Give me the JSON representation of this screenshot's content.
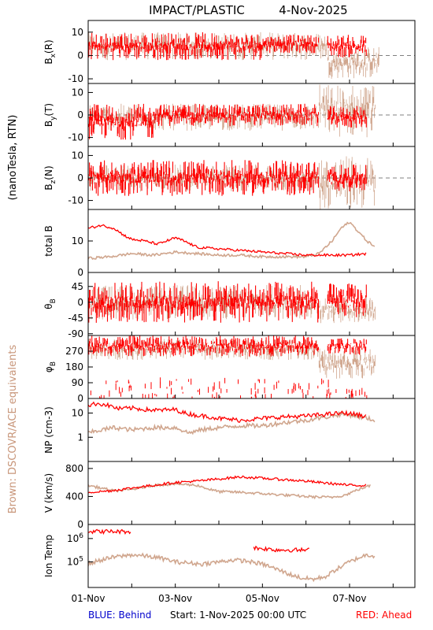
{
  "title": "IMPACT/PLASTIC",
  "date": "4-Nov-2025",
  "units_label": "(nanoTesla, RTN)",
  "brown_note": "Brown: DSCOVR/ACE equivalents",
  "footer": {
    "blue": "BLUE: Behind",
    "start": "Start:   1-Nov-2025 00:00 UTC",
    "red": "RED: Ahead"
  },
  "colors": {
    "ahead": "#ff0000",
    "ace": "#c8967a",
    "behind": "#0000cc",
    "dash": "#808080"
  },
  "chart_data": {
    "type": "scatter",
    "x_axis": {
      "ticks": [
        "01-Nov",
        "03-Nov",
        "05-Nov",
        "07-Nov"
      ],
      "range_days": [
        0,
        7.5
      ]
    },
    "panels": [
      {
        "id": "bx",
        "label": "Bx(R)",
        "ylim": [
          -12,
          15
        ],
        "ticks": [
          "10",
          "0",
          "-10"
        ],
        "tick_values": [
          10,
          0,
          -10
        ],
        "zero_dash": true,
        "series": [
          {
            "name": "Ahead",
            "color": "red",
            "segments": [
              {
                "x0": 0,
                "x1": 4.0,
                "y": 4,
                "amp": 6
              },
              {
                "x0": 4.0,
                "x1": 5.3,
                "y": 5,
                "amp": 4
              },
              {
                "x0": 5.5,
                "x1": 6.4,
                "y": 4,
                "amp": 5
              }
            ]
          },
          {
            "name": "ACE",
            "color": "brown",
            "segments": [
              {
                "x0": 0,
                "x1": 5.5,
                "y": 4,
                "amp": 6
              },
              {
                "x0": 5.5,
                "x1": 6.7,
                "y": -3,
                "amp": 7
              }
            ]
          }
        ]
      },
      {
        "id": "by",
        "label": "By(T)",
        "ylim": [
          -14,
          14
        ],
        "ticks": [
          "10",
          "0",
          "-10"
        ],
        "tick_values": [
          10,
          0,
          -10
        ],
        "zero_dash": true,
        "series": [
          {
            "name": "Ahead",
            "color": "red",
            "segments": [
              {
                "x0": 0,
                "x1": 1.5,
                "y": -3,
                "amp": 8
              },
              {
                "x0": 1.5,
                "x1": 5.3,
                "y": 0,
                "amp": 5
              },
              {
                "x0": 5.5,
                "x1": 6.4,
                "y": -1,
                "amp": 5
              }
            ]
          },
          {
            "name": "ACE",
            "color": "brown",
            "segments": [
              {
                "x0": 0,
                "x1": 5.3,
                "y": -1,
                "amp": 6
              },
              {
                "x0": 5.3,
                "x1": 6.6,
                "y": 2,
                "amp": 12
              }
            ]
          }
        ]
      },
      {
        "id": "bz",
        "label": "Bz(N)",
        "ylim": [
          -14,
          14
        ],
        "ticks": [
          "10",
          "0",
          "-10"
        ],
        "tick_values": [
          10,
          0,
          -10
        ],
        "zero_dash": true,
        "series": [
          {
            "name": "Ahead",
            "color": "red",
            "segments": [
              {
                "x0": 0,
                "x1": 5.3,
                "y": 0,
                "amp": 8
              },
              {
                "x0": 5.5,
                "x1": 6.4,
                "y": 0,
                "amp": 6
              }
            ]
          },
          {
            "name": "ACE",
            "color": "brown",
            "segments": [
              {
                "x0": 0,
                "x1": 5.3,
                "y": 0,
                "amp": 6
              },
              {
                "x0": 5.3,
                "x1": 6.6,
                "y": -2,
                "amp": 12
              }
            ]
          }
        ]
      },
      {
        "id": "bt",
        "label": "total B",
        "ylim": [
          0,
          20
        ],
        "ticks": [
          "10",
          "0"
        ],
        "tick_values": [
          10,
          0
        ],
        "zero_dash": false,
        "series": [
          {
            "name": "Ahead",
            "color": "red",
            "line": [
              [
                0,
                14
              ],
              [
                0.3,
                15
              ],
              [
                0.6,
                14
              ],
              [
                0.8,
                12
              ],
              [
                1.0,
                10.5
              ],
              [
                1.3,
                10
              ],
              [
                1.6,
                9
              ],
              [
                2.0,
                11
              ],
              [
                2.2,
                10
              ],
              [
                2.5,
                8
              ],
              [
                3.0,
                7.5
              ],
              [
                3.5,
                7
              ],
              [
                4.0,
                6.5
              ],
              [
                4.5,
                6
              ],
              [
                5.0,
                5.5
              ],
              [
                5.3,
                5.5
              ],
              [
                5.5,
                5.5
              ],
              [
                6.0,
                5.5
              ],
              [
                6.4,
                6
              ]
            ]
          },
          {
            "name": "ACE",
            "color": "brown",
            "line": [
              [
                0,
                4.5
              ],
              [
                0.5,
                5
              ],
              [
                1.0,
                6
              ],
              [
                1.5,
                5.5
              ],
              [
                2.0,
                6.5
              ],
              [
                2.5,
                6
              ],
              [
                3.0,
                5.5
              ],
              [
                3.5,
                5.5
              ],
              [
                4.0,
                5
              ],
              [
                4.5,
                5
              ],
              [
                5.0,
                5
              ],
              [
                5.3,
                6
              ],
              [
                5.6,
                10
              ],
              [
                5.8,
                14
              ],
              [
                6.0,
                16
              ],
              [
                6.2,
                13
              ],
              [
                6.4,
                10
              ],
              [
                6.6,
                8
              ]
            ]
          }
        ]
      },
      {
        "id": "theta",
        "label": "θB",
        "ylim": [
          -95,
          85
        ],
        "ticks": [
          "45",
          "0",
          "-45",
          "-90"
        ],
        "tick_values": [
          45,
          0,
          -45,
          -90
        ],
        "zero_dash": false,
        "series": [
          {
            "name": "Ahead",
            "color": "red",
            "segments": [
              {
                "x0": 0,
                "x1": 5.3,
                "y": 0,
                "amp": 60
              },
              {
                "x0": 5.5,
                "x1": 6.4,
                "y": 5,
                "amp": 50
              }
            ]
          },
          {
            "name": "ACE",
            "color": "brown",
            "segments": [
              {
                "x0": 0,
                "x1": 5.3,
                "y": 0,
                "amp": 50
              },
              {
                "x0": 5.3,
                "x1": 6.6,
                "y": -20,
                "amp": 40
              }
            ]
          }
        ]
      },
      {
        "id": "phi",
        "label": "φB",
        "ylim": [
          0,
          360
        ],
        "ticks": [
          "270",
          "180",
          "90",
          "0"
        ],
        "tick_values": [
          270,
          180,
          90,
          0
        ],
        "zero_dash": false,
        "series": [
          {
            "name": "Ahead",
            "color": "red",
            "segments": [
              {
                "x0": 0,
                "x1": 5.3,
                "y": 300,
                "amp": 60
              },
              {
                "x0": 5.5,
                "x1": 6.4,
                "y": 300,
                "amp": 50
              }
            ],
            "scatter_low": true
          },
          {
            "name": "ACE",
            "color": "brown",
            "segments": [
              {
                "x0": 0,
                "x1": 5.3,
                "y": 280,
                "amp": 60
              },
              {
                "x0": 5.3,
                "x1": 6.6,
                "y": 200,
                "amp": 90
              }
            ]
          }
        ]
      },
      {
        "id": "np",
        "label": "NP (cm-3)",
        "log": true,
        "ylim": [
          0.1,
          40
        ],
        "ticks": [
          "10",
          "1"
        ],
        "tick_values": [
          10,
          1
        ],
        "zero_dash": false,
        "series": [
          {
            "name": "Ahead",
            "color": "red",
            "line": [
              [
                0,
                20
              ],
              [
                0.2,
                25
              ],
              [
                0.4,
                22
              ],
              [
                0.7,
                15
              ],
              [
                1.0,
                16
              ],
              [
                1.3,
                14
              ],
              [
                1.6,
                13
              ],
              [
                2.0,
                14
              ],
              [
                2.2,
                10
              ],
              [
                2.5,
                8
              ],
              [
                2.8,
                7
              ],
              [
                3.0,
                6
              ],
              [
                3.5,
                5
              ],
              [
                4.0,
                6
              ],
              [
                4.5,
                7
              ],
              [
                5.0,
                7.5
              ],
              [
                5.5,
                9
              ],
              [
                5.9,
                10
              ],
              [
                6.1,
                9
              ],
              [
                6.4,
                7
              ]
            ]
          },
          {
            "name": "ACE",
            "color": "brown",
            "line": [
              [
                0,
                1.5
              ],
              [
                0.3,
                2
              ],
              [
                0.6,
                2.5
              ],
              [
                1.0,
                2
              ],
              [
                1.5,
                2.5
              ],
              [
                2.0,
                2.5
              ],
              [
                2.3,
                1.5
              ],
              [
                2.6,
                2
              ],
              [
                3.0,
                2.5
              ],
              [
                3.5,
                3
              ],
              [
                4.0,
                3
              ],
              [
                4.5,
                4
              ],
              [
                5.0,
                5
              ],
              [
                5.5,
                7
              ],
              [
                5.8,
                9
              ],
              [
                6.1,
                8
              ],
              [
                6.4,
                6
              ],
              [
                6.6,
                5
              ]
            ]
          }
        ]
      },
      {
        "id": "v",
        "label": "V (km/s)",
        "ylim": [
          0,
          900
        ],
        "ticks": [
          "800",
          "400",
          "0"
        ],
        "tick_values": [
          800,
          400,
          0
        ],
        "zero_dash": false,
        "series": [
          {
            "name": "Ahead",
            "color": "red",
            "line": [
              [
                0,
                460
              ],
              [
                0.5,
                480
              ],
              [
                1.0,
                520
              ],
              [
                1.5,
                560
              ],
              [
                2.0,
                600
              ],
              [
                2.5,
                620
              ],
              [
                3.0,
                650
              ],
              [
                3.5,
                680
              ],
              [
                4.0,
                660
              ],
              [
                4.5,
                640
              ],
              [
                5.0,
                620
              ],
              [
                5.3,
                600
              ],
              [
                5.5,
                590
              ],
              [
                6.0,
                560
              ],
              [
                6.4,
                560
              ]
            ]
          },
          {
            "name": "ACE",
            "color": "brown",
            "line": [
              [
                0,
                560
              ],
              [
                0.3,
                520
              ],
              [
                0.6,
                480
              ],
              [
                1.0,
                500
              ],
              [
                1.5,
                560
              ],
              [
                2.0,
                580
              ],
              [
                2.5,
                560
              ],
              [
                2.8,
                500
              ],
              [
                3.0,
                470
              ],
              [
                3.5,
                460
              ],
              [
                4.0,
                440
              ],
              [
                4.5,
                420
              ],
              [
                5.0,
                400
              ],
              [
                5.3,
                390
              ],
              [
                5.6,
                390
              ],
              [
                5.9,
                420
              ],
              [
                6.2,
                500
              ],
              [
                6.5,
                560
              ]
            ]
          }
        ]
      },
      {
        "id": "temp",
        "label": "Ion Temp",
        "log": true,
        "ylim": [
          8000,
          4000000
        ],
        "ticks": [
          "10^6",
          "10^5"
        ],
        "tick_values": [
          1000000,
          100000
        ],
        "zero_dash": false,
        "series": [
          {
            "name": "Ahead",
            "color": "red",
            "line_segments": [
              [
                [
                  0,
                  2000000
                ],
                [
                  1.0,
                  2000000
                ]
              ],
              [
                [
                  3.8,
                  400000
                ],
                [
                  4.3,
                  330000
                ],
                [
                  4.8,
                  320000
                ],
                [
                  5.1,
                  320000
                ]
              ]
            ]
          },
          {
            "name": "ACE",
            "color": "brown",
            "line": [
              [
                0,
                80000
              ],
              [
                0.3,
                120000
              ],
              [
                0.6,
                160000
              ],
              [
                1.0,
                200000
              ],
              [
                1.3,
                180000
              ],
              [
                1.6,
                150000
              ],
              [
                2.0,
                100000
              ],
              [
                2.3,
                90000
              ],
              [
                2.6,
                80000
              ],
              [
                3.0,
                100000
              ],
              [
                3.3,
                120000
              ],
              [
                3.6,
                110000
              ],
              [
                4.0,
                80000
              ],
              [
                4.3,
                50000
              ],
              [
                4.6,
                30000
              ],
              [
                4.9,
                20000
              ],
              [
                5.2,
                18000
              ],
              [
                5.5,
                25000
              ],
              [
                5.8,
                60000
              ],
              [
                6.1,
                120000
              ],
              [
                6.4,
                200000
              ],
              [
                6.6,
                180000
              ]
            ]
          }
        ]
      }
    ]
  }
}
